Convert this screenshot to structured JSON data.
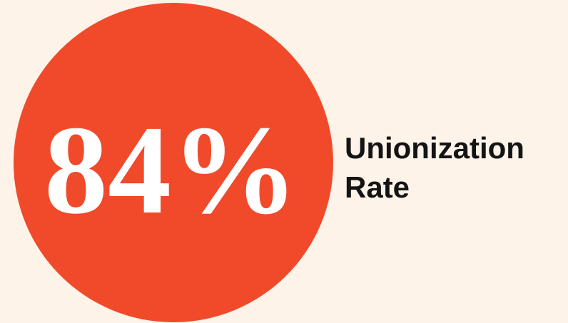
{
  "stat": {
    "value": "84%",
    "label": "Unionization Rate"
  }
}
